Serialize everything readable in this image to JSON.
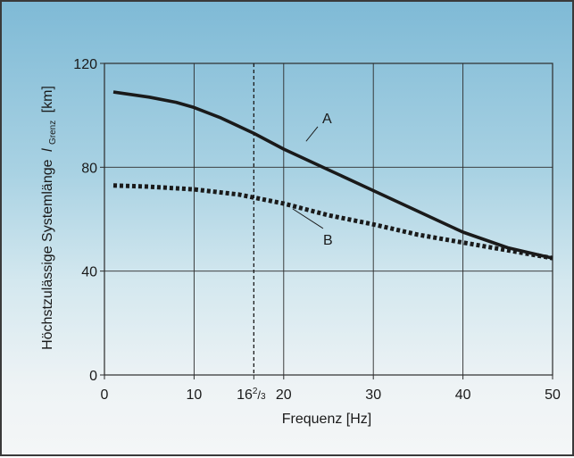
{
  "chart_data": {
    "type": "line",
    "xlabel": "Frequenz [Hz]",
    "ylabel": "Höchstzulässige Systemlänge",
    "ylabel_symbol": "l",
    "ylabel_subscript": "Grenz",
    "ylabel_unit": "[km]",
    "xlim": [
      0,
      50
    ],
    "ylim": [
      0,
      120
    ],
    "x_ticks": [
      {
        "value": 0,
        "label": "0"
      },
      {
        "value": 10,
        "label": "10"
      },
      {
        "value": 20,
        "label": "20"
      },
      {
        "value": 30,
        "label": "30"
      },
      {
        "value": 40,
        "label": "40"
      },
      {
        "value": 50,
        "label": "50"
      }
    ],
    "special_tick": {
      "value": 16.667,
      "label_main": "16",
      "label_num": "2",
      "label_den": "3"
    },
    "y_ticks": [
      {
        "value": 0,
        "label": "0"
      },
      {
        "value": 40,
        "label": "40"
      },
      {
        "value": 80,
        "label": "80"
      },
      {
        "value": 120,
        "label": "120"
      }
    ],
    "grid": true,
    "reference_line_x": 16.667,
    "series": [
      {
        "name": "A",
        "style": "solid",
        "color": "#1a1a1a",
        "x": [
          1,
          5,
          8,
          10,
          13,
          16.7,
          20,
          25,
          30,
          35,
          40,
          45,
          50
        ],
        "y": [
          109,
          107,
          105,
          103,
          99,
          93,
          87,
          79,
          71,
          63,
          55,
          49,
          45
        ],
        "label_at": {
          "x": 22.5,
          "y": 90
        },
        "label_pos": {
          "x": 24,
          "y": 97
        }
      },
      {
        "name": "B",
        "style": "dotted",
        "color": "#1a1a1a",
        "x": [
          1,
          5,
          10,
          15,
          20,
          25,
          30,
          35,
          40,
          45,
          50
        ],
        "y": [
          73,
          72.5,
          71.5,
          69.5,
          66,
          61.5,
          58,
          54,
          51,
          48,
          45
        ],
        "label_at": {
          "x": 21,
          "y": 64
        },
        "label_pos": {
          "x": 24,
          "y": 53
        }
      }
    ]
  }
}
